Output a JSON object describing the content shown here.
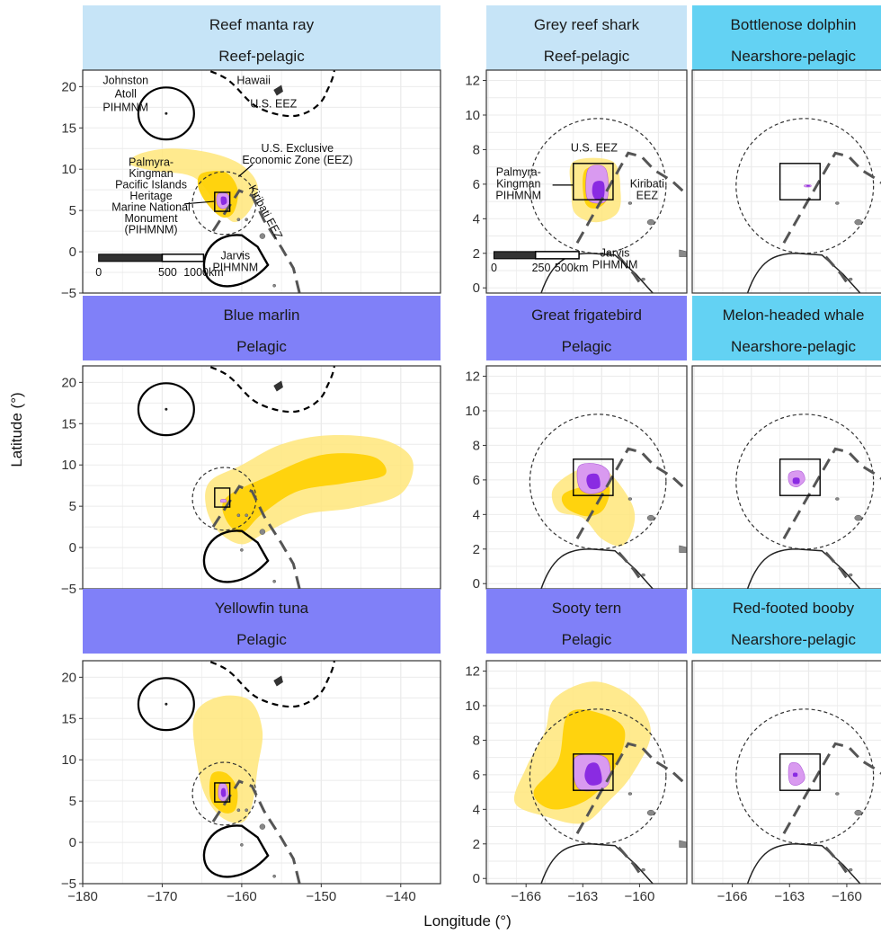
{
  "axes": {
    "x_title": "Longitude (°)",
    "y_title": "Latitude (°)",
    "wide": {
      "xlim": [
        -180,
        -135
      ],
      "ylim": [
        -5,
        22
      ],
      "x_ticks": [
        {
          "v": -180,
          "label": "−180"
        },
        {
          "v": -170,
          "label": "−170"
        },
        {
          "v": -160,
          "label": "−160"
        },
        {
          "v": -150,
          "label": "−150"
        },
        {
          "v": -140,
          "label": "−140"
        }
      ],
      "y_ticks": [
        {
          "v": -5,
          "label": "−5"
        },
        {
          "v": 0,
          "label": "0"
        },
        {
          "v": 5,
          "label": "5"
        },
        {
          "v": 10,
          "label": "10"
        },
        {
          "v": 15,
          "label": "15"
        },
        {
          "v": 20,
          "label": "20"
        }
      ]
    },
    "zoom": {
      "xlim": [
        -168.1,
        -157.5
      ],
      "ylim": [
        -0.3,
        12.6
      ],
      "x_ticks": [
        {
          "v": -166,
          "label": "−166"
        },
        {
          "v": -163,
          "label": "−163"
        },
        {
          "v": -160,
          "label": "−160"
        }
      ],
      "y_ticks": [
        {
          "v": 0,
          "label": "0"
        },
        {
          "v": 2,
          "label": "2"
        },
        {
          "v": 4,
          "label": "4"
        },
        {
          "v": 6,
          "label": "6"
        },
        {
          "v": 8,
          "label": "8"
        },
        {
          "v": 10,
          "label": "10"
        },
        {
          "v": 12,
          "label": "12"
        }
      ]
    }
  },
  "colors": {
    "reef_pelagic": "#c6e4f7",
    "pelagic": "#8080f8",
    "nearshore_pelagic": "#63d2f3",
    "density_outer": "#ffe67a",
    "density_mid": "#ffd000",
    "core_outer": "#d99af0",
    "core_inner": "#8a2be2",
    "boundary": "#000000",
    "eez_dash": "#555555",
    "land": "#888888",
    "grid": "#ebebeb"
  },
  "panels": [
    {
      "id": "reef-manta-ray",
      "species": "Reef manta ray",
      "group": "Reef-pelagic",
      "scale": "wide",
      "outer": [
        [
          -173,
          11.8
        ],
        [
          -169,
          12.5
        ],
        [
          -164,
          12
        ],
        [
          -160,
          10.5
        ],
        [
          -158,
          8
        ],
        [
          -159,
          5
        ],
        [
          -161,
          3.6
        ],
        [
          -163,
          5.5
        ],
        [
          -166,
          9
        ],
        [
          -171,
          9.8
        ],
        [
          -174,
          10.6
        ]
      ],
      "mid": [
        [
          -165,
          9.5
        ],
        [
          -162,
          9.6
        ],
        [
          -160.5,
          7.5
        ],
        [
          -161,
          4.8
        ],
        [
          -162.5,
          4.2
        ],
        [
          -164.5,
          6
        ],
        [
          -165.5,
          8
        ]
      ],
      "core_outer": [
        [
          -163,
          7
        ],
        [
          -161.8,
          7
        ],
        [
          -161.5,
          5.8
        ],
        [
          -162.4,
          5.2
        ],
        [
          -163.1,
          5.8
        ]
      ],
      "core_inner": [
        [
          -162.6,
          6.6
        ],
        [
          -162,
          6.6
        ],
        [
          -161.9,
          5.9
        ],
        [
          -162.5,
          5.7
        ]
      ]
    },
    {
      "id": "grey-reef-shark",
      "species": "Grey reef shark",
      "group": "Reef-pelagic",
      "scale": "zoom",
      "outer": [
        [
          -163.5,
          7.3
        ],
        [
          -161.4,
          7.3
        ],
        [
          -161,
          5.5
        ],
        [
          -161.2,
          4.3
        ],
        [
          -162.3,
          3.8
        ],
        [
          -163.4,
          4.3
        ],
        [
          -163.6,
          5.6
        ]
      ],
      "mid": [
        [
          -162.9,
          6.8
        ],
        [
          -161.8,
          6.8
        ],
        [
          -161.7,
          5.2
        ],
        [
          -162.3,
          4.6
        ],
        [
          -162.9,
          5
        ]
      ],
      "core_outer": [
        [
          -162.7,
          6.9
        ],
        [
          -161.8,
          6.9
        ],
        [
          -161.7,
          5.2
        ],
        [
          -162.3,
          4.9
        ],
        [
          -162.8,
          5.3
        ]
      ],
      "core_inner": [
        [
          -162.4,
          6.1
        ],
        [
          -161.9,
          6.1
        ],
        [
          -161.9,
          5.2
        ],
        [
          -162.3,
          5.1
        ],
        [
          -162.5,
          5.5
        ]
      ]
    },
    {
      "id": "bottlenose-dolphin",
      "species": "Bottlenose dolphin",
      "group": "Nearshore-pelagic",
      "scale": "zoom",
      "outer": [],
      "mid": [],
      "core_outer": [
        [
          -162.2,
          5.95
        ],
        [
          -161.9,
          5.95
        ],
        [
          -161.9,
          5.85
        ],
        [
          -162.2,
          5.85
        ]
      ],
      "core_inner": [
        [
          -162.1,
          5.93
        ],
        [
          -161.95,
          5.93
        ],
        [
          -161.95,
          5.87
        ],
        [
          -162.1,
          5.87
        ]
      ]
    },
    {
      "id": "blue-marlin",
      "species": "Blue marlin",
      "group": "Pelagic",
      "scale": "wide",
      "outer": [
        [
          -164,
          8
        ],
        [
          -160,
          10
        ],
        [
          -155,
          12.5
        ],
        [
          -149,
          13.6
        ],
        [
          -142,
          13
        ],
        [
          -138.5,
          10.5
        ],
        [
          -140,
          6.5
        ],
        [
          -146,
          4.8
        ],
        [
          -152,
          4
        ],
        [
          -157,
          1.8
        ],
        [
          -160,
          0.4
        ],
        [
          -163,
          2
        ],
        [
          -164.5,
          5
        ]
      ],
      "mid": [
        [
          -162,
          6
        ],
        [
          -157,
          8.5
        ],
        [
          -150,
          11.2
        ],
        [
          -143.5,
          11
        ],
        [
          -142,
          8.8
        ],
        [
          -147,
          7.8
        ],
        [
          -153,
          6.8
        ],
        [
          -157.5,
          4
        ],
        [
          -160,
          1.8
        ],
        [
          -162,
          3.4
        ]
      ],
      "core_outer": [
        [
          -162.6,
          5.8
        ],
        [
          -162,
          5.8
        ],
        [
          -162,
          5.5
        ],
        [
          -162.6,
          5.5
        ]
      ],
      "core_inner": []
    },
    {
      "id": "great-frigatebird",
      "species": "Great frigatebird",
      "group": "Pelagic",
      "scale": "zoom",
      "outer": [
        [
          -164.6,
          5.4
        ],
        [
          -163.6,
          6.4
        ],
        [
          -162.3,
          6.8
        ],
        [
          -161.4,
          6.2
        ],
        [
          -160.4,
          4.6
        ],
        [
          -160.3,
          3.4
        ],
        [
          -160.9,
          2.2
        ],
        [
          -162,
          2.6
        ],
        [
          -163,
          3.8
        ],
        [
          -164.3,
          4.2
        ]
      ],
      "mid": [
        [
          -164,
          5.2
        ],
        [
          -162.6,
          5.7
        ],
        [
          -161.6,
          5.6
        ],
        [
          -161.9,
          4.3
        ],
        [
          -162.8,
          3.9
        ],
        [
          -163.9,
          4.4
        ]
      ],
      "core_outer": [
        [
          -163.2,
          6.8
        ],
        [
          -162.2,
          6.9
        ],
        [
          -161.6,
          6.4
        ],
        [
          -161.8,
          5.5
        ],
        [
          -162.6,
          5.2
        ],
        [
          -163.2,
          5.6
        ]
      ],
      "core_inner": [
        [
          -162.7,
          6.3
        ],
        [
          -162.2,
          6.3
        ],
        [
          -162.1,
          5.6
        ],
        [
          -162.6,
          5.5
        ],
        [
          -162.8,
          5.9
        ]
      ]
    },
    {
      "id": "melon-headed-whale",
      "species": "Melon-headed whale",
      "group": "Nearshore-pelagic",
      "scale": "zoom",
      "outer": [],
      "mid": [],
      "core_outer": [
        [
          -163,
          6.4
        ],
        [
          -162.4,
          6.5
        ],
        [
          -162.2,
          6
        ],
        [
          -162.6,
          5.6
        ],
        [
          -163,
          5.8
        ]
      ],
      "core_inner": [
        [
          -162.8,
          6.1
        ],
        [
          -162.5,
          6.1
        ],
        [
          -162.5,
          5.8
        ],
        [
          -162.8,
          5.8
        ]
      ]
    },
    {
      "id": "yellowfin-tuna",
      "species": "Yellowfin tuna",
      "group": "Pelagic",
      "scale": "wide",
      "outer": [
        [
          -166,
          15.2
        ],
        [
          -163,
          17.6
        ],
        [
          -159,
          17.2
        ],
        [
          -157.4,
          13.5
        ],
        [
          -158,
          9
        ],
        [
          -158.7,
          4.5
        ],
        [
          -160,
          2.4
        ],
        [
          -162.5,
          3
        ],
        [
          -164.5,
          5.5
        ],
        [
          -165.5,
          9
        ]
      ],
      "mid": [
        [
          -163.8,
          8.2
        ],
        [
          -162,
          8.4
        ],
        [
          -160.6,
          6.6
        ],
        [
          -160.8,
          4
        ],
        [
          -162.3,
          3.6
        ],
        [
          -163.9,
          5.2
        ]
      ],
      "core_outer": [
        [
          -162.8,
          7
        ],
        [
          -162,
          7
        ],
        [
          -161.7,
          5.6
        ],
        [
          -162.3,
          5
        ],
        [
          -162.9,
          5.5
        ]
      ],
      "core_inner": [
        [
          -162.5,
          6.5
        ],
        [
          -162.1,
          6.5
        ],
        [
          -162,
          5.7
        ],
        [
          -162.4,
          5.5
        ],
        [
          -162.6,
          5.9
        ]
      ]
    },
    {
      "id": "sooty-tern",
      "species": "Sooty tern",
      "group": "Pelagic",
      "scale": "zoom",
      "outer": [
        [
          -164.5,
          10.4
        ],
        [
          -162.4,
          11.4
        ],
        [
          -160.3,
          10.4
        ],
        [
          -159.4,
          8.4
        ],
        [
          -160.4,
          6
        ],
        [
          -161.6,
          4.5
        ],
        [
          -163,
          3.2
        ],
        [
          -165,
          3.6
        ],
        [
          -166.6,
          4.4
        ],
        [
          -166,
          6.4
        ],
        [
          -165,
          8.5
        ]
      ],
      "mid": [
        [
          -163.8,
          9.5
        ],
        [
          -162.2,
          9.6
        ],
        [
          -160.8,
          8.6
        ],
        [
          -161.3,
          6.4
        ],
        [
          -162.7,
          4.6
        ],
        [
          -164.6,
          4
        ],
        [
          -165.6,
          5
        ],
        [
          -164.3,
          6.8
        ]
      ],
      "core_outer": [
        [
          -163.4,
          7
        ],
        [
          -161.8,
          7
        ],
        [
          -161.6,
          5.6
        ],
        [
          -162.3,
          5.1
        ],
        [
          -163.3,
          5.3
        ]
      ],
      "core_inner": [
        [
          -162.7,
          6.6
        ],
        [
          -162.2,
          6.6
        ],
        [
          -162,
          5.6
        ],
        [
          -162.6,
          5.4
        ],
        [
          -162.9,
          5.9
        ]
      ]
    },
    {
      "id": "red-footed-booby",
      "species": "Red-footed booby",
      "group": "Nearshore-pelagic",
      "scale": "zoom",
      "outer": [],
      "mid": [],
      "core_outer": [
        [
          -163,
          6.6
        ],
        [
          -162.5,
          6.6
        ],
        [
          -162.2,
          5.8
        ],
        [
          -162.6,
          5.4
        ],
        [
          -163,
          5.6
        ]
      ],
      "core_inner": [
        [
          -162.8,
          6.1
        ],
        [
          -162.6,
          6.1
        ],
        [
          -162.6,
          5.9
        ],
        [
          -162.8,
          5.9
        ]
      ]
    }
  ],
  "annotations": {
    "johnston": "Johnston\nAtoll\nPIHMNM",
    "hawaii": "Hawaii",
    "us_eez_wide": "U.S. EEZ",
    "eez_full": "U.S. Exclusive\nEconomic Zone (EEZ)",
    "palmyra_wide": "Palmyra-\nKingman\nPacific Islands\nHeritage\nMarine National\nMonument\n(PIHMNM)",
    "kiribati_wide": "Kiribati EEZ",
    "jarvis": "Jarvis\nPIHMNM",
    "scale_wide": {
      "zero": "0",
      "mid": "500",
      "end": "1000km"
    },
    "us_eez_zoom": "U.S. EEZ",
    "palmyra_zoom": "Palmyra-\nKingman\nPIHMNM",
    "kiribati_zoom": "Kiribati\nEEZ",
    "scale_zoom": {
      "zero": "0",
      "mid": "250",
      "end": "500km"
    }
  }
}
